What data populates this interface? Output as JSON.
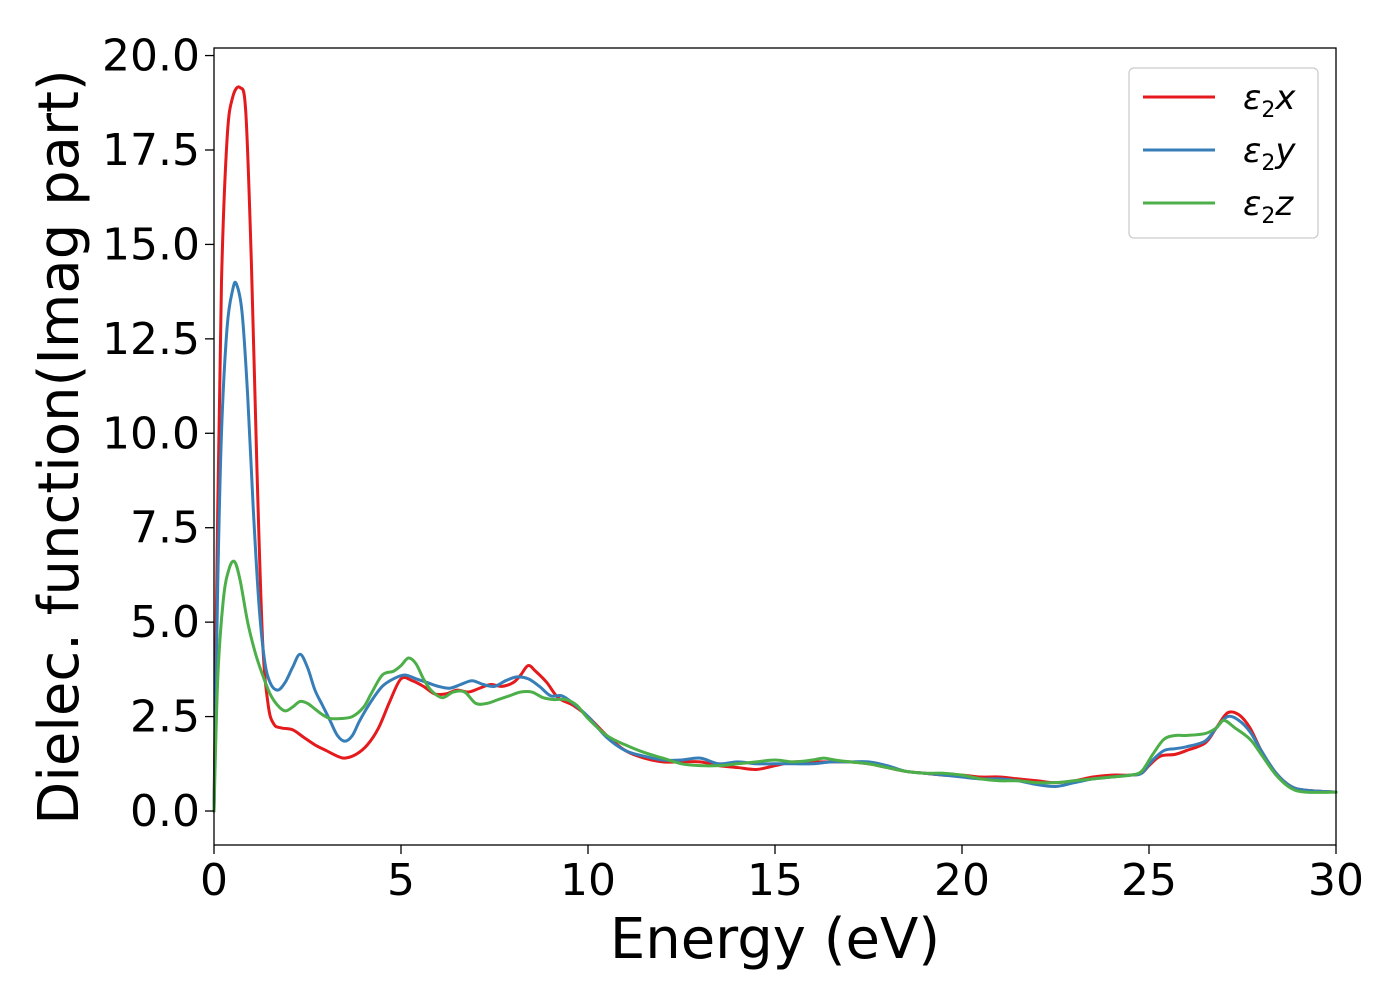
{
  "chart_data": {
    "type": "line",
    "xlabel": "Energy (eV)",
    "ylabel": "Dielec. function(Imag part)",
    "xlim": [
      0,
      30
    ],
    "ylim": [
      -0.9,
      20.2
    ],
    "xticks": [
      0,
      5,
      10,
      15,
      20,
      25,
      30
    ],
    "xtick_labels": [
      "0",
      "5",
      "10",
      "15",
      "20",
      "25",
      "30"
    ],
    "yticks": [
      0.0,
      2.5,
      5.0,
      7.5,
      10.0,
      12.5,
      15.0,
      17.5,
      20.0
    ],
    "ytick_labels": [
      "0.0",
      "2.5",
      "5.0",
      "7.5",
      "10.0",
      "12.5",
      "15.0",
      "17.5",
      "20.0"
    ],
    "grid": false,
    "legend_position": "top-right",
    "series": [
      {
        "name": "ε₂x",
        "label_base": "ε",
        "label_sub": "2",
        "label_var": "x",
        "color": "#e41a1c",
        "points": [
          [
            0,
            0
          ],
          [
            0.1,
            8.0
          ],
          [
            0.2,
            14.0
          ],
          [
            0.35,
            17.8
          ],
          [
            0.5,
            18.9
          ],
          [
            0.7,
            19.15
          ],
          [
            0.85,
            18.5
          ],
          [
            1.0,
            14.5
          ],
          [
            1.15,
            9.0
          ],
          [
            1.3,
            4.5
          ],
          [
            1.45,
            2.8
          ],
          [
            1.6,
            2.3
          ],
          [
            1.8,
            2.2
          ],
          [
            2.1,
            2.15
          ],
          [
            2.4,
            1.95
          ],
          [
            2.7,
            1.75
          ],
          [
            3.0,
            1.6
          ],
          [
            3.3,
            1.45
          ],
          [
            3.5,
            1.4
          ],
          [
            3.8,
            1.5
          ],
          [
            4.1,
            1.75
          ],
          [
            4.4,
            2.2
          ],
          [
            4.7,
            2.9
          ],
          [
            5.0,
            3.5
          ],
          [
            5.3,
            3.45
          ],
          [
            5.6,
            3.3
          ],
          [
            5.9,
            3.1
          ],
          [
            6.2,
            3.1
          ],
          [
            6.5,
            3.2
          ],
          [
            6.8,
            3.15
          ],
          [
            7.1,
            3.25
          ],
          [
            7.4,
            3.35
          ],
          [
            7.7,
            3.3
          ],
          [
            8.0,
            3.4
          ],
          [
            8.2,
            3.6
          ],
          [
            8.4,
            3.85
          ],
          [
            8.6,
            3.7
          ],
          [
            8.9,
            3.4
          ],
          [
            9.2,
            3.0
          ],
          [
            9.6,
            2.8
          ],
          [
            10.0,
            2.5
          ],
          [
            10.5,
            2.0
          ],
          [
            11.0,
            1.6
          ],
          [
            11.5,
            1.4
          ],
          [
            12.0,
            1.3
          ],
          [
            12.5,
            1.3
          ],
          [
            13.0,
            1.3
          ],
          [
            13.5,
            1.2
          ],
          [
            14.0,
            1.15
          ],
          [
            14.5,
            1.1
          ],
          [
            15.0,
            1.2
          ],
          [
            15.5,
            1.3
          ],
          [
            16.0,
            1.3
          ],
          [
            16.5,
            1.3
          ],
          [
            17.0,
            1.3
          ],
          [
            17.5,
            1.25
          ],
          [
            18.0,
            1.15
          ],
          [
            18.5,
            1.05
          ],
          [
            19.0,
            1.0
          ],
          [
            19.5,
            0.95
          ],
          [
            20.0,
            0.95
          ],
          [
            20.5,
            0.9
          ],
          [
            21.0,
            0.9
          ],
          [
            21.5,
            0.85
          ],
          [
            22.0,
            0.8
          ],
          [
            22.5,
            0.75
          ],
          [
            23.0,
            0.8
          ],
          [
            23.5,
            0.9
          ],
          [
            24.0,
            0.95
          ],
          [
            24.5,
            0.95
          ],
          [
            24.8,
            1.0
          ],
          [
            25.0,
            1.2
          ],
          [
            25.3,
            1.45
          ],
          [
            25.7,
            1.5
          ],
          [
            26.0,
            1.6
          ],
          [
            26.5,
            1.8
          ],
          [
            26.8,
            2.2
          ],
          [
            27.1,
            2.6
          ],
          [
            27.4,
            2.55
          ],
          [
            27.7,
            2.2
          ],
          [
            28.0,
            1.6
          ],
          [
            28.4,
            1.0
          ],
          [
            28.8,
            0.65
          ],
          [
            29.2,
            0.55
          ],
          [
            30.0,
            0.5
          ]
        ]
      },
      {
        "name": "ε₂y",
        "label_base": "ε",
        "label_sub": "2",
        "label_var": "y",
        "color": "#377eb8",
        "points": [
          [
            0,
            0
          ],
          [
            0.1,
            6.0
          ],
          [
            0.2,
            10.0
          ],
          [
            0.35,
            12.8
          ],
          [
            0.5,
            13.8
          ],
          [
            0.6,
            13.95
          ],
          [
            0.75,
            13.2
          ],
          [
            0.9,
            11.0
          ],
          [
            1.05,
            8.0
          ],
          [
            1.2,
            5.5
          ],
          [
            1.35,
            4.0
          ],
          [
            1.5,
            3.4
          ],
          [
            1.7,
            3.2
          ],
          [
            1.9,
            3.4
          ],
          [
            2.1,
            3.8
          ],
          [
            2.3,
            4.15
          ],
          [
            2.5,
            3.8
          ],
          [
            2.7,
            3.2
          ],
          [
            2.9,
            2.8
          ],
          [
            3.1,
            2.4
          ],
          [
            3.3,
            2.0
          ],
          [
            3.5,
            1.85
          ],
          [
            3.7,
            2.0
          ],
          [
            3.9,
            2.4
          ],
          [
            4.2,
            2.9
          ],
          [
            4.5,
            3.3
          ],
          [
            4.8,
            3.5
          ],
          [
            5.1,
            3.6
          ],
          [
            5.4,
            3.5
          ],
          [
            5.7,
            3.4
          ],
          [
            6.0,
            3.3
          ],
          [
            6.3,
            3.25
          ],
          [
            6.6,
            3.35
          ],
          [
            6.9,
            3.45
          ],
          [
            7.2,
            3.35
          ],
          [
            7.5,
            3.3
          ],
          [
            7.8,
            3.45
          ],
          [
            8.1,
            3.55
          ],
          [
            8.4,
            3.5
          ],
          [
            8.7,
            3.3
          ],
          [
            9.0,
            3.05
          ],
          [
            9.3,
            3.05
          ],
          [
            9.6,
            2.85
          ],
          [
            10.0,
            2.5
          ],
          [
            10.5,
            1.95
          ],
          [
            11.0,
            1.6
          ],
          [
            11.5,
            1.45
          ],
          [
            12.0,
            1.35
          ],
          [
            12.5,
            1.35
          ],
          [
            13.0,
            1.4
          ],
          [
            13.5,
            1.25
          ],
          [
            14.0,
            1.3
          ],
          [
            14.5,
            1.25
          ],
          [
            15.0,
            1.25
          ],
          [
            15.5,
            1.25
          ],
          [
            16.0,
            1.25
          ],
          [
            16.5,
            1.3
          ],
          [
            17.0,
            1.3
          ],
          [
            17.5,
            1.3
          ],
          [
            18.0,
            1.2
          ],
          [
            18.5,
            1.05
          ],
          [
            19.0,
            1.0
          ],
          [
            19.5,
            0.95
          ],
          [
            20.0,
            0.9
          ],
          [
            20.5,
            0.85
          ],
          [
            21.0,
            0.85
          ],
          [
            21.5,
            0.8
          ],
          [
            22.0,
            0.7
          ],
          [
            22.5,
            0.65
          ],
          [
            23.0,
            0.75
          ],
          [
            23.5,
            0.85
          ],
          [
            24.0,
            0.9
          ],
          [
            24.5,
            0.95
          ],
          [
            24.8,
            1.0
          ],
          [
            25.1,
            1.35
          ],
          [
            25.4,
            1.6
          ],
          [
            25.7,
            1.65
          ],
          [
            26.0,
            1.7
          ],
          [
            26.5,
            1.85
          ],
          [
            26.8,
            2.2
          ],
          [
            27.1,
            2.5
          ],
          [
            27.4,
            2.4
          ],
          [
            27.7,
            2.1
          ],
          [
            28.0,
            1.6
          ],
          [
            28.4,
            1.0
          ],
          [
            28.8,
            0.65
          ],
          [
            29.2,
            0.55
          ],
          [
            30.0,
            0.5
          ]
        ]
      },
      {
        "name": "ε₂z",
        "label_base": "ε",
        "label_sub": "2",
        "label_var": "z",
        "color": "#4daf4a",
        "points": [
          [
            0,
            0
          ],
          [
            0.1,
            3.5
          ],
          [
            0.25,
            5.6
          ],
          [
            0.4,
            6.4
          ],
          [
            0.55,
            6.6
          ],
          [
            0.7,
            6.1
          ],
          [
            0.9,
            5.0
          ],
          [
            1.1,
            4.2
          ],
          [
            1.3,
            3.6
          ],
          [
            1.5,
            3.1
          ],
          [
            1.7,
            2.8
          ],
          [
            1.9,
            2.65
          ],
          [
            2.1,
            2.75
          ],
          [
            2.3,
            2.9
          ],
          [
            2.5,
            2.85
          ],
          [
            2.7,
            2.7
          ],
          [
            2.9,
            2.55
          ],
          [
            3.1,
            2.45
          ],
          [
            3.4,
            2.45
          ],
          [
            3.7,
            2.5
          ],
          [
            4.0,
            2.75
          ],
          [
            4.2,
            3.1
          ],
          [
            4.5,
            3.6
          ],
          [
            4.8,
            3.7
          ],
          [
            5.0,
            3.85
          ],
          [
            5.2,
            4.05
          ],
          [
            5.4,
            3.9
          ],
          [
            5.6,
            3.5
          ],
          [
            5.8,
            3.2
          ],
          [
            6.1,
            3.0
          ],
          [
            6.4,
            3.15
          ],
          [
            6.7,
            3.15
          ],
          [
            7.0,
            2.85
          ],
          [
            7.3,
            2.85
          ],
          [
            7.6,
            2.95
          ],
          [
            7.9,
            3.05
          ],
          [
            8.2,
            3.15
          ],
          [
            8.5,
            3.15
          ],
          [
            8.8,
            3.0
          ],
          [
            9.1,
            2.95
          ],
          [
            9.4,
            2.95
          ],
          [
            9.7,
            2.8
          ],
          [
            10.0,
            2.45
          ],
          [
            10.5,
            2.0
          ],
          [
            11.0,
            1.75
          ],
          [
            11.5,
            1.55
          ],
          [
            12.0,
            1.4
          ],
          [
            12.5,
            1.25
          ],
          [
            13.0,
            1.2
          ],
          [
            13.5,
            1.2
          ],
          [
            14.0,
            1.25
          ],
          [
            14.5,
            1.3
          ],
          [
            15.0,
            1.35
          ],
          [
            15.5,
            1.3
          ],
          [
            16.0,
            1.35
          ],
          [
            16.3,
            1.4
          ],
          [
            16.6,
            1.35
          ],
          [
            17.0,
            1.3
          ],
          [
            17.5,
            1.25
          ],
          [
            18.0,
            1.15
          ],
          [
            18.5,
            1.05
          ],
          [
            19.0,
            1.0
          ],
          [
            19.5,
            1.0
          ],
          [
            20.0,
            0.95
          ],
          [
            20.5,
            0.85
          ],
          [
            21.0,
            0.8
          ],
          [
            21.5,
            0.8
          ],
          [
            22.0,
            0.75
          ],
          [
            22.5,
            0.75
          ],
          [
            23.0,
            0.8
          ],
          [
            23.5,
            0.85
          ],
          [
            24.0,
            0.9
          ],
          [
            24.5,
            0.95
          ],
          [
            24.8,
            1.05
          ],
          [
            25.1,
            1.5
          ],
          [
            25.4,
            1.9
          ],
          [
            25.7,
            2.0
          ],
          [
            26.0,
            2.0
          ],
          [
            26.5,
            2.05
          ],
          [
            26.8,
            2.2
          ],
          [
            27.0,
            2.4
          ],
          [
            27.3,
            2.2
          ],
          [
            27.7,
            1.9
          ],
          [
            28.0,
            1.5
          ],
          [
            28.4,
            0.95
          ],
          [
            28.8,
            0.6
          ],
          [
            29.2,
            0.5
          ],
          [
            30.0,
            0.5
          ]
        ]
      }
    ]
  }
}
